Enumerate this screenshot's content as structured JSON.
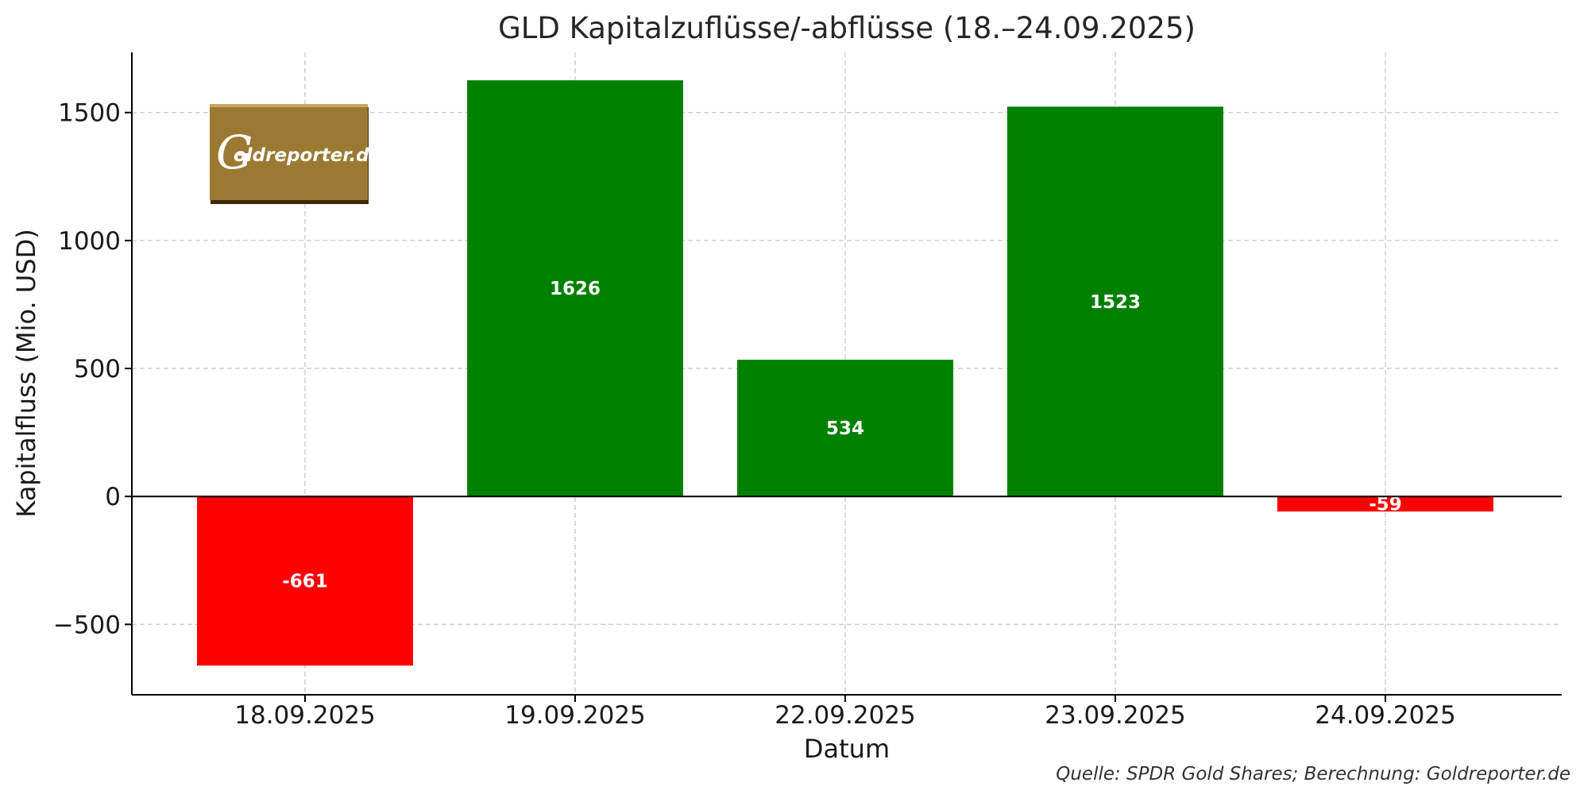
{
  "chart_data": {
    "type": "bar",
    "title": "GLD Kapitalzuflüsse/-abflüsse (18.–24.09.2025)",
    "xlabel": "Datum",
    "ylabel": "Kapitalfluss (Mio. USD)",
    "categories": [
      "18.09.2025",
      "19.09.2025",
      "22.09.2025",
      "23.09.2025",
      "24.09.2025"
    ],
    "values": [
      -661,
      1626,
      534,
      1523,
      -59
    ],
    "data_labels": [
      "-661",
      "1626",
      "534",
      "1523",
      "-59"
    ],
    "ylim": [
      -775,
      1735
    ],
    "yticks": [
      -500,
      0,
      500,
      1000,
      1500
    ],
    "ytick_labels": [
      "−500",
      "0",
      "500",
      "1000",
      "1500"
    ],
    "grid": true,
    "colors": {
      "positive": "#008000",
      "negative": "#ff0000"
    }
  },
  "logo": {
    "text": "Goldreporter.de",
    "color": "#9a7a33"
  },
  "source": "Quelle: SPDR Gold Shares; Berechnung: Goldreporter.de"
}
